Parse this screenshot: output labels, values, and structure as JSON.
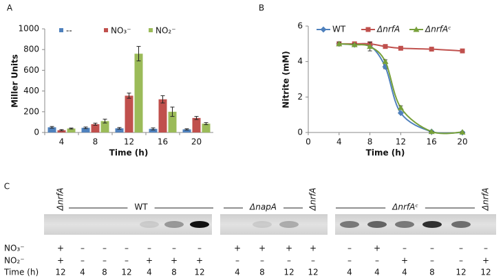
{
  "chart_data": [
    {
      "type": "bar",
      "panel": "A",
      "ylabel": "Miller Units",
      "xlabel": "Time (h)",
      "categories": [
        "4",
        "8",
        "12",
        "16",
        "20"
      ],
      "series": [
        {
          "name": "--",
          "color": "#4f81bd",
          "values": [
            50,
            45,
            40,
            35,
            30
          ],
          "errors": [
            8,
            8,
            8,
            10,
            6
          ]
        },
        {
          "name": "NO₃⁻",
          "color": "#c0504d",
          "values": [
            22,
            80,
            355,
            320,
            140
          ],
          "errors": [
            6,
            10,
            25,
            35,
            15
          ]
        },
        {
          "name": "NO₂⁻",
          "color": "#9bbb59",
          "values": [
            38,
            110,
            760,
            200,
            85
          ],
          "errors": [
            5,
            18,
            70,
            45,
            10
          ]
        }
      ],
      "ylim": [
        0,
        1000
      ],
      "yticks": [
        0,
        200,
        400,
        600,
        800,
        1000
      ]
    },
    {
      "type": "line",
      "panel": "B",
      "ylabel": "Nitrite (mM)",
      "xlabel": "Time (h)",
      "x": [
        4,
        6,
        8,
        10,
        12,
        16,
        20
      ],
      "series": [
        {
          "name": "WT",
          "color": "#4f81bd",
          "marker": "diamond",
          "values": [
            5.0,
            4.95,
            4.9,
            3.7,
            1.1,
            0.05,
            0.0
          ],
          "errors": [
            0.1,
            0.05,
            0.1,
            0.1,
            0.05,
            0.02,
            0.02
          ]
        },
        {
          "name": "ΔnrfA",
          "color": "#c0504d",
          "marker": "square",
          "values": [
            5.0,
            5.0,
            5.0,
            4.85,
            4.75,
            4.7,
            4.6
          ],
          "errors": [
            0.1,
            0.05,
            0.05,
            0.05,
            0.05,
            0.1,
            0.05
          ]
        },
        {
          "name": "ΔnrfAᶜ",
          "color": "#77a03a",
          "marker": "triangle",
          "values": [
            5.0,
            4.95,
            4.85,
            4.0,
            1.4,
            0.05,
            0.02
          ],
          "errors": [
            0.1,
            0.05,
            0.25,
            0.1,
            0.1,
            0.02,
            0.02
          ]
        }
      ],
      "xlim": [
        0,
        20
      ],
      "xticks": [
        0,
        4,
        8,
        12,
        16,
        20
      ],
      "ylim": [
        0,
        6
      ],
      "yticks": [
        0,
        2,
        4,
        6
      ]
    }
  ],
  "gel": {
    "panel": "C",
    "rows": [
      {
        "label": "NO₃⁻",
        "values": [
          "+",
          "–",
          "–",
          "–",
          "–",
          "–",
          "–",
          "+",
          "+",
          "+",
          "+",
          "–",
          "+",
          "–",
          "–",
          "–",
          "–"
        ]
      },
      {
        "label": "NO₂⁻",
        "values": [
          "+",
          "–",
          "–",
          "–",
          "+",
          "+",
          "+",
          "–",
          "–",
          "–",
          "–",
          "–",
          "–",
          "+",
          "–",
          "–",
          "+"
        ]
      },
      {
        "label": "Time (h)",
        "values": [
          12,
          4,
          8,
          12,
          4,
          8,
          12,
          4,
          8,
          12,
          12,
          4,
          4,
          4,
          8,
          12,
          12
        ]
      }
    ],
    "band_intensity": [
      0,
      0,
      0,
      0,
      0.1,
      0.35,
      1,
      0,
      0.1,
      0.25,
      0,
      0.5,
      0.6,
      0.5,
      0.85,
      0.55,
      0
    ],
    "strains": [
      {
        "label": "ΔnrfA",
        "first_lane": 0,
        "last_lane": 0,
        "rotated": true
      },
      {
        "label": "WT",
        "first_lane": 1,
        "last_lane": 6,
        "rotated": false
      },
      {
        "label": "ΔnapA",
        "first_lane": 7,
        "last_lane": 9,
        "rotated": false
      },
      {
        "label": "ΔnrfA",
        "first_lane": 10,
        "last_lane": 10,
        "rotated": true
      },
      {
        "label": "ΔnrfAᶜ",
        "first_lane": 11,
        "last_lane": 15,
        "rotated": false
      },
      {
        "label": "ΔnrfA",
        "first_lane": 16,
        "last_lane": 16,
        "rotated": true
      }
    ]
  }
}
